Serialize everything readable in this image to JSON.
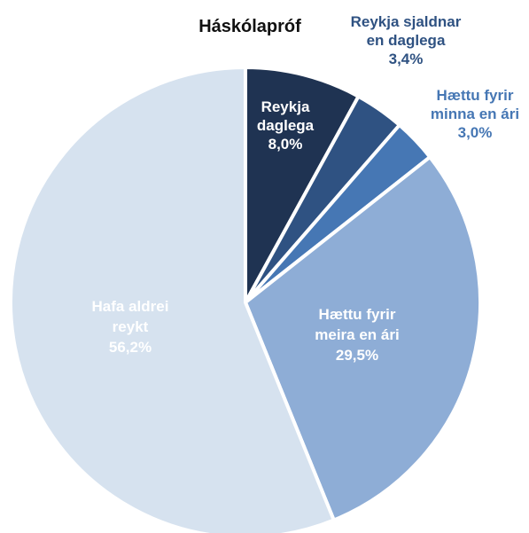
{
  "chart_data": {
    "type": "pie",
    "title": "Háskólapróf",
    "slices": [
      {
        "name": "Reykja daglega",
        "label_lines": [
          "Reykja",
          "daglega"
        ],
        "value": 8.0,
        "value_label": "8,0%",
        "color": "#1f3352",
        "label_color": "#ffffff"
      },
      {
        "name": "Reykja sjaldnar en daglega",
        "label_lines": [
          "Reykja sjaldnar",
          "en daglega"
        ],
        "value": 3.4,
        "value_label": "3,4%",
        "color": "#2f5282",
        "label_color": "#2f5282"
      },
      {
        "name": "Hættu fyrir minna en ári",
        "label_lines": [
          "Hættu fyrir",
          "minna en ári"
        ],
        "value": 3.0,
        "value_label": "3,0%",
        "color": "#4677b4",
        "label_color": "#4677b4"
      },
      {
        "name": "Hættu fyrir meira en ári",
        "label_lines": [
          "Hættu fyrir",
          "meira en ári"
        ],
        "value": 29.5,
        "value_label": "29,5%",
        "color": "#8eadd6",
        "label_color": "#ffffff"
      },
      {
        "name": "Hafa aldrei reykt",
        "label_lines": [
          "Hafa aldrei",
          "reykt"
        ],
        "value": 56.2,
        "value_label": "56,2%",
        "color": "#d6e2ef",
        "label_color": "#ffffff"
      }
    ]
  }
}
